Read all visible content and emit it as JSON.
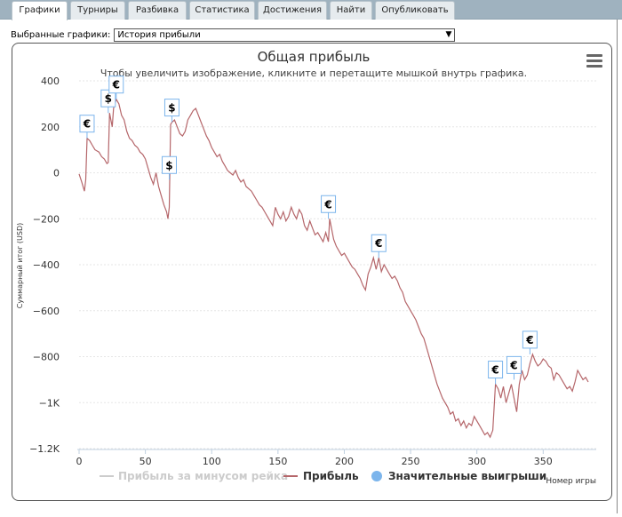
{
  "tabs": [
    {
      "label": "Графики",
      "active": true
    },
    {
      "label": "Турниры",
      "active": false
    },
    {
      "label": "Разбивка",
      "active": false
    },
    {
      "label": "Статистика",
      "active": false
    },
    {
      "label": "Достижения",
      "active": false
    },
    {
      "label": "Найти",
      "active": false
    },
    {
      "label": "Опубликовать",
      "active": false
    }
  ],
  "selector": {
    "label": "Выбранные графики:",
    "value": "История прибыли"
  },
  "chart_data": {
    "type": "line",
    "title": "Общая прибыль",
    "subtitle": "Чтобы увеличить изображение, кликните и перетащите мышкой внутрь графика.",
    "xlabel": "Номер игры",
    "ylabel": "Суммарный итог (USD)",
    "xlim": [
      0,
      390
    ],
    "ylim": [
      -1200,
      400
    ],
    "x_ticks": [
      0,
      50,
      100,
      150,
      200,
      250,
      300,
      350
    ],
    "y_ticks": [
      400,
      200,
      0,
      -200,
      -400,
      -600,
      -800,
      -1000,
      -1200
    ],
    "y_tick_labels": [
      "400",
      "200",
      "0",
      "−200",
      "−400",
      "−600",
      "−800",
      "−1K",
      "−1.2K"
    ],
    "grid": "horizontal",
    "legend_position": "bottom",
    "series": [
      {
        "name": "Прибыль за минусом рейка",
        "color": "#cccccc",
        "visible": false,
        "points": []
      },
      {
        "name": "Прибыль",
        "color": "#b5666a",
        "visible": true,
        "points": [
          [
            0,
            -5
          ],
          [
            2,
            -40
          ],
          [
            4,
            -80
          ],
          [
            5,
            -30
          ],
          [
            6,
            150
          ],
          [
            8,
            140
          ],
          [
            10,
            120
          ],
          [
            12,
            100
          ],
          [
            15,
            90
          ],
          [
            17,
            70
          ],
          [
            19,
            60
          ],
          [
            21,
            40
          ],
          [
            22,
            45
          ],
          [
            23,
            260
          ],
          [
            25,
            200
          ],
          [
            26,
            280
          ],
          [
            28,
            320
          ],
          [
            30,
            300
          ],
          [
            32,
            250
          ],
          [
            34,
            230
          ],
          [
            36,
            180
          ],
          [
            38,
            150
          ],
          [
            40,
            140
          ],
          [
            42,
            120
          ],
          [
            44,
            110
          ],
          [
            46,
            90
          ],
          [
            48,
            80
          ],
          [
            50,
            60
          ],
          [
            52,
            20
          ],
          [
            54,
            -20
          ],
          [
            56,
            -50
          ],
          [
            58,
            0
          ],
          [
            60,
            -60
          ],
          [
            62,
            -100
          ],
          [
            64,
            -140
          ],
          [
            66,
            -170
          ],
          [
            67,
            -200
          ],
          [
            68,
            -150
          ],
          [
            69,
            210
          ],
          [
            70,
            220
          ],
          [
            72,
            230
          ],
          [
            74,
            200
          ],
          [
            76,
            170
          ],
          [
            78,
            160
          ],
          [
            80,
            180
          ],
          [
            82,
            230
          ],
          [
            84,
            250
          ],
          [
            86,
            270
          ],
          [
            88,
            280
          ],
          [
            90,
            250
          ],
          [
            92,
            220
          ],
          [
            94,
            190
          ],
          [
            96,
            160
          ],
          [
            98,
            140
          ],
          [
            100,
            110
          ],
          [
            102,
            90
          ],
          [
            104,
            70
          ],
          [
            106,
            80
          ],
          [
            108,
            50
          ],
          [
            110,
            30
          ],
          [
            112,
            10
          ],
          [
            114,
            0
          ],
          [
            116,
            -10
          ],
          [
            118,
            10
          ],
          [
            120,
            -20
          ],
          [
            122,
            -40
          ],
          [
            124,
            -30
          ],
          [
            126,
            -60
          ],
          [
            128,
            -70
          ],
          [
            130,
            -80
          ],
          [
            132,
            -100
          ],
          [
            134,
            -120
          ],
          [
            136,
            -140
          ],
          [
            138,
            -150
          ],
          [
            140,
            -170
          ],
          [
            142,
            -190
          ],
          [
            144,
            -210
          ],
          [
            146,
            -230
          ],
          [
            148,
            -150
          ],
          [
            150,
            -180
          ],
          [
            152,
            -200
          ],
          [
            154,
            -170
          ],
          [
            156,
            -210
          ],
          [
            158,
            -190
          ],
          [
            160,
            -150
          ],
          [
            162,
            -180
          ],
          [
            164,
            -200
          ],
          [
            166,
            -160
          ],
          [
            168,
            -180
          ],
          [
            170,
            -230
          ],
          [
            172,
            -250
          ],
          [
            174,
            -210
          ],
          [
            176,
            -240
          ],
          [
            178,
            -270
          ],
          [
            180,
            -260
          ],
          [
            182,
            -280
          ],
          [
            184,
            -300
          ],
          [
            186,
            -260
          ],
          [
            188,
            -300
          ],
          [
            189,
            -200
          ],
          [
            190,
            -230
          ],
          [
            192,
            -290
          ],
          [
            194,
            -320
          ],
          [
            196,
            -340
          ],
          [
            198,
            -360
          ],
          [
            200,
            -350
          ],
          [
            202,
            -370
          ],
          [
            204,
            -390
          ],
          [
            206,
            -410
          ],
          [
            208,
            -420
          ],
          [
            210,
            -440
          ],
          [
            212,
            -460
          ],
          [
            214,
            -490
          ],
          [
            216,
            -510
          ],
          [
            218,
            -440
          ],
          [
            220,
            -410
          ],
          [
            222,
            -370
          ],
          [
            224,
            -420
          ],
          [
            226,
            -370
          ],
          [
            228,
            -430
          ],
          [
            230,
            -400
          ],
          [
            232,
            -420
          ],
          [
            234,
            -440
          ],
          [
            236,
            -460
          ],
          [
            238,
            -450
          ],
          [
            240,
            -470
          ],
          [
            242,
            -500
          ],
          [
            244,
            -520
          ],
          [
            246,
            -560
          ],
          [
            248,
            -580
          ],
          [
            250,
            -600
          ],
          [
            252,
            -620
          ],
          [
            254,
            -640
          ],
          [
            256,
            -670
          ],
          [
            258,
            -700
          ],
          [
            260,
            -720
          ],
          [
            262,
            -760
          ],
          [
            264,
            -800
          ],
          [
            266,
            -840
          ],
          [
            268,
            -880
          ],
          [
            270,
            -920
          ],
          [
            272,
            -950
          ],
          [
            274,
            -980
          ],
          [
            276,
            -1000
          ],
          [
            278,
            -1020
          ],
          [
            280,
            -1050
          ],
          [
            282,
            -1040
          ],
          [
            284,
            -1080
          ],
          [
            286,
            -1070
          ],
          [
            288,
            -1100
          ],
          [
            290,
            -1080
          ],
          [
            292,
            -1110
          ],
          [
            294,
            -1090
          ],
          [
            296,
            -1100
          ],
          [
            298,
            -1060
          ],
          [
            300,
            -1080
          ],
          [
            302,
            -1100
          ],
          [
            304,
            -1120
          ],
          [
            306,
            -1140
          ],
          [
            308,
            -1130
          ],
          [
            310,
            -1150
          ],
          [
            312,
            -1120
          ],
          [
            314,
            -920
          ],
          [
            316,
            -940
          ],
          [
            318,
            -980
          ],
          [
            320,
            -930
          ],
          [
            322,
            -1000
          ],
          [
            324,
            -960
          ],
          [
            326,
            -920
          ],
          [
            328,
            -980
          ],
          [
            330,
            -1040
          ],
          [
            332,
            -920
          ],
          [
            334,
            -860
          ],
          [
            336,
            -900
          ],
          [
            338,
            -880
          ],
          [
            340,
            -830
          ],
          [
            342,
            -790
          ],
          [
            344,
            -820
          ],
          [
            346,
            -840
          ],
          [
            348,
            -830
          ],
          [
            350,
            -810
          ],
          [
            352,
            -820
          ],
          [
            354,
            -840
          ],
          [
            356,
            -850
          ],
          [
            358,
            -900
          ],
          [
            360,
            -870
          ],
          [
            362,
            -880
          ],
          [
            364,
            -900
          ],
          [
            366,
            -920
          ],
          [
            368,
            -940
          ],
          [
            370,
            -930
          ],
          [
            372,
            -950
          ],
          [
            374,
            -910
          ],
          [
            376,
            -860
          ],
          [
            378,
            -880
          ],
          [
            380,
            -900
          ],
          [
            382,
            -890
          ],
          [
            384,
            -910
          ]
        ]
      }
    ],
    "markers_series": {
      "name": "Значительные выигрыши",
      "color": "#7cb5ec"
    },
    "markers": [
      {
        "x": 6,
        "y": 150,
        "symbol": "€"
      },
      {
        "x": 22,
        "y": 260,
        "symbol": "$"
      },
      {
        "x": 28,
        "y": 320,
        "symbol": "€"
      },
      {
        "x": 68,
        "y": -30,
        "symbol": "$"
      },
      {
        "x": 70,
        "y": 220,
        "symbol": "$"
      },
      {
        "x": 188,
        "y": -200,
        "symbol": "€"
      },
      {
        "x": 226,
        "y": -370,
        "symbol": "€"
      },
      {
        "x": 314,
        "y": -920,
        "symbol": "€"
      },
      {
        "x": 328,
        "y": -900,
        "symbol": "€"
      },
      {
        "x": 340,
        "y": -790,
        "symbol": "€"
      }
    ]
  }
}
